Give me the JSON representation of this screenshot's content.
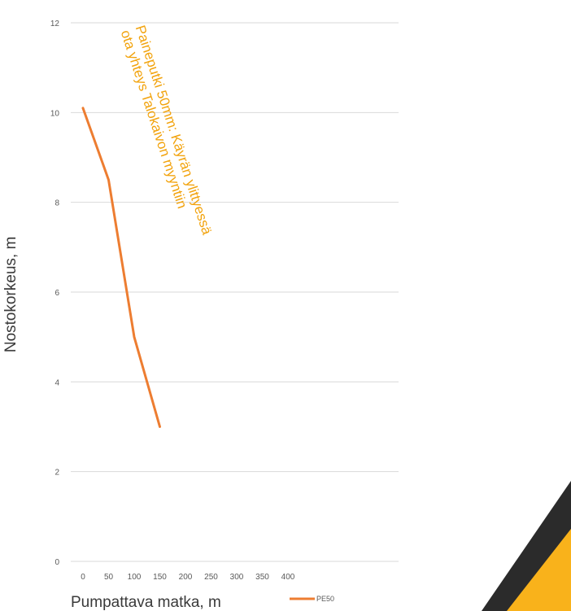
{
  "chart_data": {
    "type": "line",
    "x": [
      0,
      50,
      100,
      150
    ],
    "x_ticks": [
      "0",
      "50",
      "100",
      "150",
      "200",
      "250",
      "300",
      "350",
      "400"
    ],
    "y_ticks": [
      "0",
      "2",
      "4",
      "6",
      "8",
      "10",
      "12"
    ],
    "ylim": [
      0,
      12
    ],
    "series": [
      {
        "name": "PE50",
        "values": [
          10.1,
          8.5,
          5.0,
          3.0
        ],
        "color": "#ed7d31"
      }
    ],
    "xlabel": "Pumpattava matka, m",
    "ylabel": "Nostokorkeus, m",
    "annotation": {
      "line1": "Paineputki 50mm: Käyrän ylittyessä",
      "line2": "ota yhteys Talokaivon myyntiin",
      "color": "#f2a30d"
    },
    "grid": true,
    "legend": "bottom"
  },
  "decoration": {
    "corner_dark": "#2b2b2b",
    "corner_accent": "#f9b21b"
  }
}
